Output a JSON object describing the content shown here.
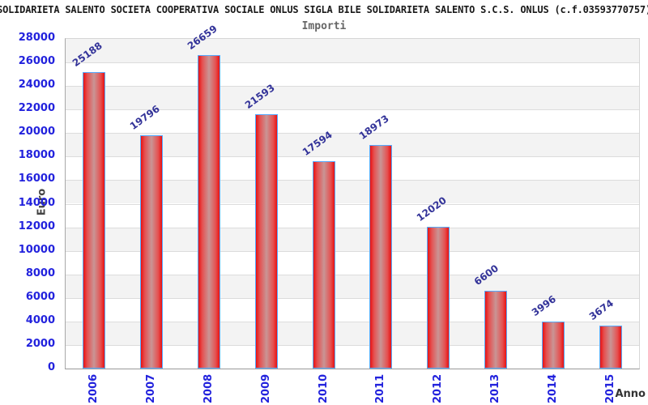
{
  "chart_data": {
    "type": "bar",
    "title": "SOLIDARIETA SALENTO SOCIETA COOPERATIVA SOCIALE ONLUS SIGLA BILE SOLIDARIETA SALENTO S.C.S. ONLUS (c.f.03593770757)",
    "subtitle": "Importi",
    "xlabel": "Anno",
    "ylabel": "Euro",
    "categories": [
      "2006",
      "2007",
      "2008",
      "2009",
      "2010",
      "2011",
      "2012",
      "2013",
      "2014",
      "2015"
    ],
    "values": [
      25188,
      19796,
      26659,
      21593,
      17594,
      18973,
      12020,
      6600,
      3996,
      3674
    ],
    "ylim": [
      0,
      28000
    ],
    "ytick_step": 2000,
    "grid": true,
    "legend": false,
    "band_fill": "alternating horizontal stripes",
    "value_labels": "rotated above each bar",
    "x_tick_rotation_deg": 90,
    "bar_count": 10
  },
  "colors": {
    "bar_edge_red": "#e81212",
    "bar_mid_red": "#e55050",
    "bar_center_light": "#c99595",
    "bar_border_blue": "#55aaff",
    "tick_label_blue": "#2222dd",
    "value_label_blue": "#333399",
    "title_text": "#1a1a1a",
    "subtitle_text": "#666666",
    "axis_title_gray": "#444444",
    "band_gray": "#f3f3f3",
    "band_white": "#ffffff",
    "gridline_gray": "#dcdcdc"
  }
}
